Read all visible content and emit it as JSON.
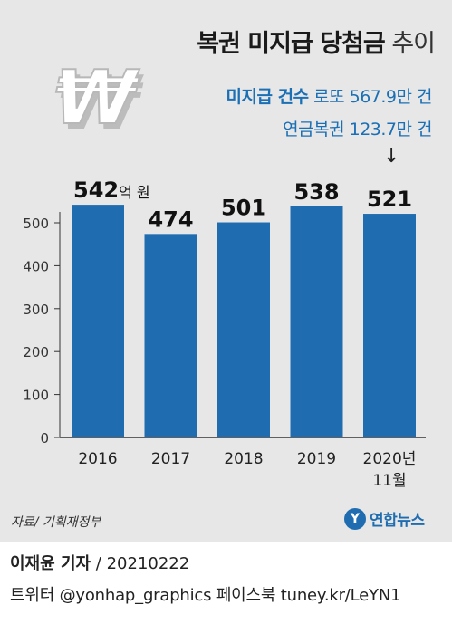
{
  "title": {
    "strong": "복권 미지급 당첨금",
    "weak": " 추이"
  },
  "notes": [
    {
      "strong": "미지급 건수",
      "text": " 로또 567.9만 건"
    },
    {
      "strong": "",
      "text": "연금복권 123.7만 건"
    }
  ],
  "arrow": "↓",
  "source": "자료/ 기획재정부",
  "logo": {
    "mark": "Y",
    "name": "연합뉴스"
  },
  "byline": {
    "reporter": "이재윤 기자",
    "date": " / 20210222"
  },
  "social": "트위터 @yonhap_graphics  페이스북 tuney.kr/LeYN1",
  "colors": {
    "bar": "#1f6db0",
    "panel": "#e7e7e7",
    "text": "#1a1a1a",
    "accent": "#1a6fb5"
  },
  "icons": {
    "won": "won-sign-icon"
  },
  "chart_data": {
    "type": "bar",
    "categories": [
      "2016",
      "2017",
      "2018",
      "2019",
      "2020년\n11월"
    ],
    "values": [
      542,
      474,
      501,
      538,
      521
    ],
    "data_labels": [
      "542",
      "474",
      "501",
      "538",
      "521"
    ],
    "first_label_unit": "억 원",
    "ylim": [
      0,
      500
    ],
    "yticks": [
      0,
      100,
      200,
      300,
      400,
      500
    ],
    "title": "",
    "xlabel": "",
    "ylabel": "",
    "grid": false,
    "legend": "none"
  }
}
